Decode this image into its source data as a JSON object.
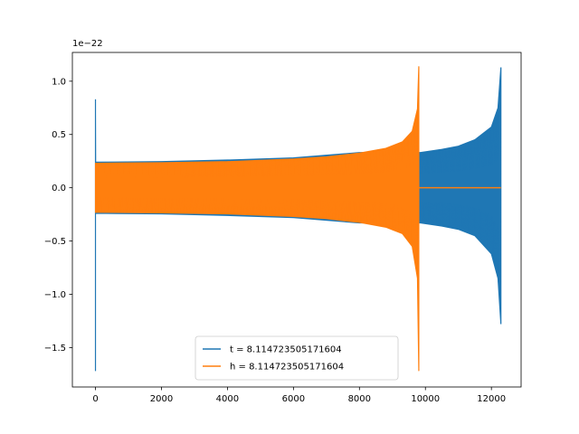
{
  "chart_data": {
    "type": "line",
    "title": "",
    "xlabel": "",
    "ylabel": "",
    "offset_text": "1e−22",
    "xlim": [
      -700,
      12900
    ],
    "ylim": [
      -1.87,
      1.27
    ],
    "y_scale_factor": 1e-22,
    "x_ticks": [
      0,
      2000,
      4000,
      6000,
      8000,
      10000,
      12000
    ],
    "x_tick_labels": [
      "0",
      "2000",
      "4000",
      "6000",
      "8000",
      "10000",
      "12000"
    ],
    "y_ticks": [
      -1.5,
      -1.0,
      -0.5,
      0.0,
      0.5,
      1.0
    ],
    "y_tick_labels": [
      "−1.5",
      "−1.0",
      "−0.5",
      "0.0",
      "0.5",
      "1.0"
    ],
    "grid": false,
    "legend_position": "bottom-center",
    "series": [
      {
        "name": "t = 8.114723505171604",
        "color": "#1f77b4",
        "x_start": 0,
        "x_end": 12288,
        "envelope_upper": [
          [
            0,
            0.83
          ],
          [
            0,
            0.24
          ],
          [
            2000,
            0.245
          ],
          [
            4000,
            0.26
          ],
          [
            6000,
            0.28
          ],
          [
            8000,
            0.33
          ],
          [
            9850,
            0.33
          ],
          [
            10500,
            0.36
          ],
          [
            11000,
            0.39
          ],
          [
            11500,
            0.45
          ],
          [
            12000,
            0.57
          ],
          [
            12200,
            0.75
          ],
          [
            12288,
            1.13
          ]
        ],
        "envelope_lower": [
          [
            0,
            -1.72
          ],
          [
            0,
            -0.24
          ],
          [
            2000,
            -0.245
          ],
          [
            4000,
            -0.26
          ],
          [
            6000,
            -0.28
          ],
          [
            8000,
            -0.33
          ],
          [
            9850,
            -0.33
          ],
          [
            10500,
            -0.36
          ],
          [
            11000,
            -0.39
          ],
          [
            11500,
            -0.45
          ],
          [
            12000,
            -0.62
          ],
          [
            12200,
            -0.85
          ],
          [
            12288,
            -1.28
          ]
        ]
      },
      {
        "name": "h = 8.114723505171604",
        "color": "#ff7f0e",
        "x_start": 0,
        "x_end": 12288,
        "envelope_upper": [
          [
            0,
            0.23
          ],
          [
            2000,
            0.235
          ],
          [
            4000,
            0.245
          ],
          [
            6000,
            0.27
          ],
          [
            7000,
            0.29
          ],
          [
            8000,
            0.325
          ],
          [
            8800,
            0.37
          ],
          [
            9300,
            0.43
          ],
          [
            9600,
            0.53
          ],
          [
            9760,
            0.74
          ],
          [
            9800,
            1.14
          ]
        ],
        "envelope_lower": [
          [
            0,
            -0.23
          ],
          [
            2000,
            -0.235
          ],
          [
            4000,
            -0.245
          ],
          [
            6000,
            -0.27
          ],
          [
            7000,
            -0.29
          ],
          [
            8000,
            -0.325
          ],
          [
            8800,
            -0.37
          ],
          [
            9300,
            -0.43
          ],
          [
            9600,
            -0.55
          ],
          [
            9760,
            -0.85
          ],
          [
            9800,
            -1.72
          ]
        ],
        "flat_value": 0.0,
        "flat_from": 9800
      }
    ]
  }
}
